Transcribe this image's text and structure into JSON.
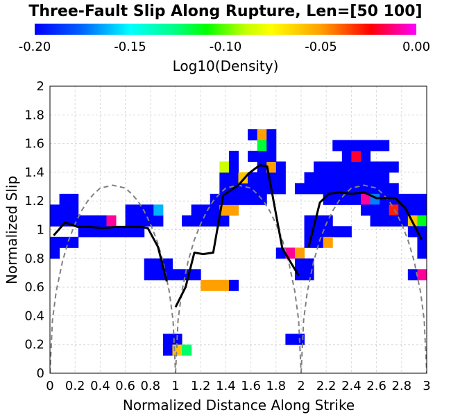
{
  "chart_data": {
    "type": "heatmap",
    "title": "Three-Fault Slip Along Rupture, Len=[50 100]",
    "xlabel": "Normalized Distance Along Strike",
    "ylabel": "Normalized Slip",
    "xlim": [
      0,
      3
    ],
    "ylim": [
      0,
      2
    ],
    "x_ticks": [
      "0",
      "0.2",
      "0.4",
      "0.6",
      "0.8",
      "1",
      "1.2",
      "1.4",
      "1.6",
      "1.8",
      "2",
      "2.2",
      "2.4",
      "2.6",
      "2.8",
      "3"
    ],
    "y_ticks": [
      "0",
      "0.2",
      "0.4",
      "0.6",
      "0.8",
      "1",
      "1.2",
      "1.4",
      "1.6",
      "1.8",
      "2"
    ],
    "grid": true,
    "colorbar": {
      "label": "Log10(Density)",
      "range": [
        -0.2,
        0
      ],
      "ticks": [
        "-0.20",
        "-0.15",
        "-0.10",
        "-0.05",
        "0.00"
      ],
      "colormap": [
        "#0000ff",
        "#00a0ff",
        "#00ffff",
        "#00ff40",
        "#00ff00",
        "#ffff00",
        "#ffa000",
        "#ff0000",
        "#ff00ff"
      ]
    },
    "cell_size": {
      "dx": 0.075,
      "dy": 0.075
    },
    "cells": [
      [
        0.0,
        1.1,
        -0.2
      ],
      [
        0.075,
        1.1,
        -0.2
      ],
      [
        0.15,
        1.1,
        -0.2
      ],
      [
        0.0,
        1.025,
        -0.2
      ],
      [
        0.075,
        1.025,
        -0.2
      ],
      [
        0.15,
        1.025,
        -0.2
      ],
      [
        0.225,
        1.025,
        -0.2
      ],
      [
        0.3,
        1.025,
        -0.2
      ],
      [
        0.375,
        1.025,
        -0.2
      ],
      [
        0.45,
        1.025,
        -0.01
      ],
      [
        0.6,
        1.025,
        -0.2
      ],
      [
        0.675,
        1.025,
        -0.2
      ],
      [
        0.75,
        1.025,
        -0.2
      ],
      [
        0.825,
        1.025,
        -0.2
      ],
      [
        0.225,
        0.95,
        -0.2
      ],
      [
        0.3,
        0.95,
        -0.2
      ],
      [
        0.375,
        0.95,
        -0.2
      ],
      [
        0.45,
        0.95,
        -0.2
      ],
      [
        0.525,
        0.95,
        -0.2
      ],
      [
        0.6,
        0.95,
        -0.2
      ],
      [
        0.675,
        0.95,
        -0.2
      ],
      [
        0.0,
        0.875,
        -0.2
      ],
      [
        0.075,
        0.875,
        -0.2
      ],
      [
        0.15,
        0.875,
        -0.2
      ],
      [
        0.075,
        1.175,
        -0.2
      ],
      [
        0.15,
        1.175,
        -0.2
      ],
      [
        0.6,
        1.1,
        -0.2
      ],
      [
        0.675,
        1.1,
        -0.2
      ],
      [
        0.75,
        1.1,
        -0.2
      ],
      [
        0.0,
        0.8,
        -0.2
      ],
      [
        0.825,
        1.1,
        -0.17
      ],
      [
        0.75,
        0.725,
        -0.2
      ],
      [
        0.825,
        0.725,
        -0.2
      ],
      [
        0.9,
        0.725,
        -0.2
      ],
      [
        0.75,
        0.65,
        -0.2
      ],
      [
        0.825,
        0.65,
        -0.2
      ],
      [
        0.9,
        0.65,
        -0.2
      ],
      [
        0.975,
        0.65,
        -0.2
      ],
      [
        1.05,
        0.65,
        -0.2
      ],
      [
        1.125,
        0.65,
        -0.2
      ],
      [
        1.2,
        0.575,
        -0.05
      ],
      [
        1.275,
        0.575,
        -0.05
      ],
      [
        1.35,
        0.575,
        -0.05
      ],
      [
        1.425,
        0.575,
        -0.2
      ],
      [
        0.9,
        0.2,
        -0.2
      ],
      [
        0.975,
        0.2,
        -0.2
      ],
      [
        0.9,
        0.125,
        -0.2
      ],
      [
        0.975,
        0.125,
        -0.06
      ],
      [
        1.05,
        0.125,
        -0.13
      ],
      [
        1.05,
        1.025,
        -0.2
      ],
      [
        1.125,
        1.025,
        -0.2
      ],
      [
        1.2,
        1.025,
        -0.2
      ],
      [
        1.275,
        1.025,
        -0.2
      ],
      [
        1.35,
        1.025,
        -0.2
      ],
      [
        1.125,
        1.1,
        -0.2
      ],
      [
        1.2,
        1.1,
        -0.2
      ],
      [
        1.275,
        1.1,
        -0.2
      ],
      [
        1.35,
        1.1,
        -0.05
      ],
      [
        1.425,
        1.1,
        -0.05
      ],
      [
        1.275,
        1.175,
        -0.2
      ],
      [
        1.35,
        1.175,
        -0.2
      ],
      [
        1.425,
        1.175,
        -0.2
      ],
      [
        1.5,
        1.175,
        -0.2
      ],
      [
        1.575,
        1.175,
        -0.2
      ],
      [
        1.65,
        1.175,
        -0.2
      ],
      [
        1.35,
        1.25,
        -0.2
      ],
      [
        1.425,
        1.25,
        -0.2
      ],
      [
        1.5,
        1.25,
        -0.2
      ],
      [
        1.575,
        1.25,
        -0.2
      ],
      [
        1.65,
        1.25,
        -0.2
      ],
      [
        1.725,
        1.25,
        -0.2
      ],
      [
        1.8,
        1.25,
        -0.2
      ],
      [
        1.35,
        1.325,
        -0.2
      ],
      [
        1.425,
        1.325,
        -0.2
      ],
      [
        1.5,
        1.325,
        -0.06
      ],
      [
        1.575,
        1.325,
        -0.2
      ],
      [
        1.65,
        1.325,
        -0.2
      ],
      [
        1.725,
        1.325,
        -0.2
      ],
      [
        1.8,
        1.325,
        -0.2
      ],
      [
        1.35,
        1.4,
        -0.08
      ],
      [
        1.425,
        1.4,
        -0.2
      ],
      [
        1.65,
        1.4,
        -0.2
      ],
      [
        1.725,
        1.4,
        -0.05
      ],
      [
        1.8,
        1.4,
        -0.2
      ],
      [
        1.425,
        1.475,
        -0.2
      ],
      [
        1.575,
        1.475,
        -0.2
      ],
      [
        1.65,
        1.475,
        -0.2
      ],
      [
        1.725,
        1.475,
        -0.2
      ],
      [
        1.575,
        1.625,
        -0.2
      ],
      [
        1.65,
        1.625,
        -0.05
      ],
      [
        1.725,
        1.625,
        -0.2
      ],
      [
        1.65,
        1.55,
        -0.12
      ],
      [
        1.725,
        1.55,
        -0.2
      ],
      [
        1.8,
        0.8,
        -0.2
      ],
      [
        1.875,
        0.8,
        -0.01
      ],
      [
        1.95,
        0.8,
        -0.05
      ],
      [
        1.95,
        0.725,
        -0.2
      ],
      [
        2.025,
        0.725,
        -0.2
      ],
      [
        1.95,
        0.65,
        -0.2
      ],
      [
        2.025,
        0.65,
        -0.2
      ],
      [
        1.875,
        0.2,
        -0.2
      ],
      [
        1.95,
        0.2,
        -0.2
      ],
      [
        1.95,
        1.25,
        -0.2
      ],
      [
        2.025,
        1.25,
        -0.2
      ],
      [
        2.1,
        1.25,
        -0.2
      ],
      [
        2.175,
        1.25,
        -0.2
      ],
      [
        2.25,
        1.25,
        -0.2
      ],
      [
        2.325,
        1.25,
        -0.2
      ],
      [
        2.4,
        1.25,
        -0.2
      ],
      [
        2.475,
        1.25,
        -0.2
      ],
      [
        2.55,
        1.25,
        -0.2
      ],
      [
        2.625,
        1.25,
        -0.2
      ],
      [
        2.7,
        1.25,
        -0.2
      ],
      [
        2.025,
        1.325,
        -0.2
      ],
      [
        2.1,
        1.325,
        -0.2
      ],
      [
        2.175,
        1.325,
        -0.2
      ],
      [
        2.25,
        1.325,
        -0.2
      ],
      [
        2.325,
        1.325,
        -0.2
      ],
      [
        2.4,
        1.325,
        -0.2
      ],
      [
        2.475,
        1.325,
        -0.2
      ],
      [
        2.55,
        1.325,
        -0.2
      ],
      [
        2.625,
        1.325,
        -0.2
      ],
      [
        2.1,
        1.4,
        -0.2
      ],
      [
        2.175,
        1.4,
        -0.2
      ],
      [
        2.25,
        1.4,
        -0.2
      ],
      [
        2.325,
        1.4,
        -0.2
      ],
      [
        2.4,
        1.4,
        -0.2
      ],
      [
        2.475,
        1.4,
        -0.2
      ],
      [
        2.55,
        1.4,
        -0.2
      ],
      [
        2.625,
        1.4,
        -0.2
      ],
      [
        2.7,
        1.4,
        -0.2
      ],
      [
        2.325,
        1.475,
        -0.2
      ],
      [
        2.4,
        1.475,
        -0.02
      ],
      [
        2.475,
        1.475,
        -0.2
      ],
      [
        2.25,
        1.55,
        -0.2
      ],
      [
        2.325,
        1.55,
        -0.2
      ],
      [
        2.4,
        1.55,
        -0.2
      ],
      [
        2.475,
        1.55,
        -0.2
      ],
      [
        2.55,
        1.55,
        -0.2
      ],
      [
        2.625,
        1.55,
        -0.2
      ],
      [
        2.175,
        1.175,
        -0.2
      ],
      [
        2.25,
        1.175,
        -0.2
      ],
      [
        2.325,
        1.175,
        -0.2
      ],
      [
        2.4,
        1.175,
        -0.2
      ],
      [
        2.475,
        1.175,
        -0.01
      ],
      [
        2.55,
        1.175,
        -0.18
      ],
      [
        2.625,
        1.175,
        -0.2
      ],
      [
        2.7,
        1.175,
        -0.2
      ],
      [
        2.775,
        1.175,
        -0.2
      ],
      [
        2.85,
        1.175,
        -0.2
      ],
      [
        2.925,
        1.175,
        -0.2
      ],
      [
        2.475,
        1.1,
        -0.2
      ],
      [
        2.55,
        1.1,
        -0.2
      ],
      [
        2.625,
        1.1,
        -0.2
      ],
      [
        2.7,
        1.1,
        -0.03
      ],
      [
        2.775,
        1.1,
        -0.2
      ],
      [
        2.85,
        1.1,
        -0.2
      ],
      [
        2.925,
        1.1,
        -0.2
      ],
      [
        2.55,
        1.025,
        -0.2
      ],
      [
        2.625,
        1.025,
        -0.2
      ],
      [
        2.7,
        1.025,
        -0.2
      ],
      [
        2.775,
        1.025,
        -0.2
      ],
      [
        2.85,
        1.025,
        -0.06
      ],
      [
        2.925,
        1.025,
        -0.11
      ],
      [
        2.1,
        1.025,
        -0.2
      ],
      [
        2.175,
        1.025,
        -0.2
      ],
      [
        2.025,
        1.025,
        -0.2
      ],
      [
        2.025,
        0.95,
        -0.2
      ],
      [
        2.1,
        0.95,
        -0.2
      ],
      [
        2.175,
        0.95,
        -0.2
      ],
      [
        2.25,
        0.95,
        -0.2
      ],
      [
        2.325,
        0.95,
        -0.2
      ],
      [
        2.025,
        0.875,
        -0.2
      ],
      [
        2.1,
        0.875,
        -0.2
      ],
      [
        2.175,
        0.875,
        -0.05
      ],
      [
        2.85,
        0.95,
        -0.2
      ],
      [
        2.925,
        0.95,
        -0.2
      ],
      [
        2.925,
        0.875,
        -0.2
      ],
      [
        2.925,
        0.8,
        -0.2
      ],
      [
        2.85,
        0.65,
        -0.2
      ],
      [
        2.925,
        0.65,
        -0.01
      ]
    ],
    "series": [
      {
        "style": "solid",
        "color": "#000000",
        "x": [
          0.03,
          0.12,
          0.22,
          0.32,
          0.42,
          0.52,
          0.62,
          0.72,
          0.78,
          0.86,
          0.93
        ],
        "y": [
          0.96,
          1.05,
          1.02,
          1.02,
          1.01,
          1.02,
          1.02,
          1.02,
          1.01,
          0.88,
          0.64
        ]
      },
      {
        "style": "solid",
        "color": "#000000",
        "x": [
          1.0,
          1.08,
          1.15,
          1.22,
          1.3,
          1.38,
          1.5,
          1.58,
          1.67,
          1.73,
          1.85,
          1.98
        ],
        "y": [
          0.46,
          0.6,
          0.84,
          0.83,
          0.84,
          1.24,
          1.31,
          1.39,
          1.45,
          1.44,
          0.87,
          0.68
        ]
      },
      {
        "style": "solid",
        "color": "#000000",
        "x": [
          2.06,
          2.15,
          2.22,
          2.3,
          2.4,
          2.5,
          2.6,
          2.7,
          2.75,
          2.83,
          2.96
        ],
        "y": [
          0.88,
          1.19,
          1.25,
          1.26,
          1.25,
          1.26,
          1.22,
          1.22,
          1.22,
          1.15,
          0.93
        ]
      },
      {
        "style": "dashed",
        "color": "#808080",
        "x": [
          0.0,
          0.02,
          0.05,
          0.1,
          0.15,
          0.2,
          0.25,
          0.3,
          0.35,
          0.4,
          0.45,
          0.5,
          0.55,
          0.6,
          0.65,
          0.7,
          0.75,
          0.8,
          0.85,
          0.9,
          0.95,
          0.98,
          1.0
        ],
        "y": [
          0.0,
          0.37,
          0.57,
          0.78,
          0.93,
          1.04,
          1.13,
          1.2,
          1.25,
          1.29,
          1.3,
          1.31,
          1.3,
          1.29,
          1.25,
          1.2,
          1.13,
          1.04,
          0.93,
          0.78,
          0.57,
          0.37,
          0.0
        ]
      },
      {
        "style": "dashed",
        "color": "#808080",
        "x": [
          1.0,
          1.02,
          1.05,
          1.1,
          1.15,
          1.2,
          1.25,
          1.3,
          1.35,
          1.4,
          1.45,
          1.5,
          1.55,
          1.6,
          1.65,
          1.7,
          1.75,
          1.8,
          1.85,
          1.9,
          1.95,
          1.98,
          2.0
        ],
        "y": [
          0.0,
          0.37,
          0.57,
          0.78,
          0.93,
          1.04,
          1.13,
          1.2,
          1.25,
          1.29,
          1.3,
          1.31,
          1.3,
          1.29,
          1.25,
          1.2,
          1.13,
          1.04,
          0.93,
          0.78,
          0.57,
          0.37,
          0.0
        ]
      },
      {
        "style": "dashed",
        "color": "#808080",
        "x": [
          2.0,
          2.02,
          2.05,
          2.1,
          2.15,
          2.2,
          2.25,
          2.3,
          2.35,
          2.4,
          2.45,
          2.5,
          2.55,
          2.6,
          2.65,
          2.7,
          2.75,
          2.8,
          2.85,
          2.9,
          2.95,
          2.98,
          3.0
        ],
        "y": [
          0.0,
          0.37,
          0.57,
          0.78,
          0.93,
          1.04,
          1.13,
          1.2,
          1.25,
          1.29,
          1.3,
          1.31,
          1.3,
          1.29,
          1.25,
          1.2,
          1.13,
          1.04,
          0.93,
          0.78,
          0.57,
          0.37,
          0.0
        ]
      }
    ]
  }
}
